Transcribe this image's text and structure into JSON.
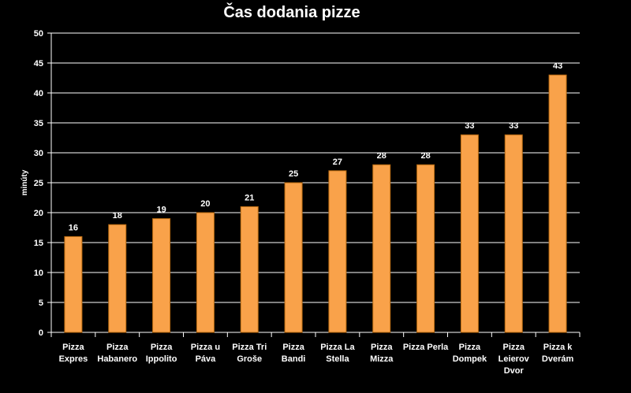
{
  "chart_data": {
    "type": "bar",
    "title": "Čas dodania pizze",
    "xlabel": "",
    "ylabel": "minúty",
    "ylim": [
      0,
      50
    ],
    "ytick_step": 5,
    "grid": true,
    "legend": "none",
    "bar_color": "#f9a24a",
    "background_color": "#000000",
    "categories": [
      [
        "Pizza",
        "Expres"
      ],
      [
        "Pizza",
        "Habanero"
      ],
      [
        "Pizza",
        "Ippolito"
      ],
      [
        "Pizza u",
        "Páva"
      ],
      [
        "Pizza Tri",
        "Groše"
      ],
      [
        "Pizza",
        "Bandi"
      ],
      [
        "Pizza La",
        "Stella"
      ],
      [
        "Pizza",
        "Mizza"
      ],
      [
        "Pizza Perla"
      ],
      [
        "Pizza",
        "Dompek"
      ],
      [
        "Pizza",
        "Leierov",
        "Dvor"
      ],
      [
        "Pizza k",
        "Dverám"
      ]
    ],
    "values": [
      16,
      18,
      19,
      20,
      21,
      25,
      27,
      28,
      28,
      33,
      33,
      43
    ]
  }
}
